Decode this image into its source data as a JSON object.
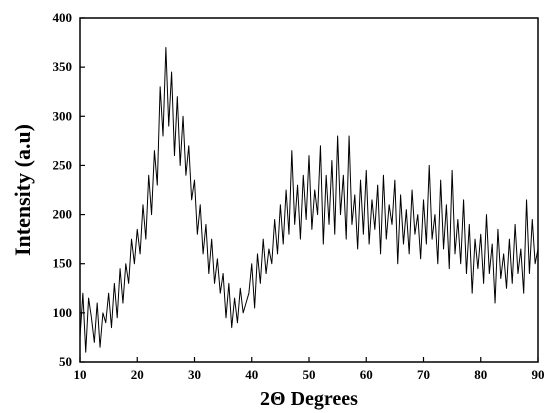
{
  "chart_data": {
    "type": "line",
    "xlabel": "2Θ Degrees",
    "ylabel": "Intensity (a.u)",
    "xlim": [
      10,
      90
    ],
    "ylim": [
      50,
      400
    ],
    "xticks": [
      10,
      20,
      30,
      40,
      50,
      60,
      70,
      80,
      90
    ],
    "yticks": [
      50,
      100,
      150,
      200,
      250,
      300,
      350,
      400
    ],
    "color": "#000000",
    "x": [
      10,
      10.5,
      11,
      11.5,
      12,
      12.5,
      13,
      13.5,
      14,
      14.5,
      15,
      15.5,
      16,
      16.5,
      17,
      17.5,
      18,
      18.5,
      19,
      19.5,
      20,
      20.5,
      21,
      21.5,
      22,
      22.5,
      23,
      23.5,
      24,
      24.5,
      25,
      25.5,
      26,
      26.5,
      27,
      27.5,
      28,
      28.5,
      29,
      29.5,
      30,
      30.5,
      31,
      31.5,
      32,
      32.5,
      33,
      33.5,
      34,
      34.5,
      35,
      35.5,
      36,
      36.5,
      37,
      37.5,
      38,
      38.5,
      39,
      39.5,
      40,
      40.5,
      41,
      41.5,
      42,
      42.5,
      43,
      43.5,
      44,
      44.5,
      45,
      45.5,
      46,
      46.5,
      47,
      47.5,
      48,
      48.5,
      49,
      49.5,
      50,
      50.5,
      51,
      51.5,
      52,
      52.5,
      53,
      53.5,
      54,
      54.5,
      55,
      55.5,
      56,
      56.5,
      57,
      57.5,
      58,
      58.5,
      59,
      59.5,
      60,
      60.5,
      61,
      61.5,
      62,
      62.5,
      63,
      63.5,
      64,
      64.5,
      65,
      65.5,
      66,
      66.5,
      67,
      67.5,
      68,
      68.5,
      69,
      69.5,
      70,
      70.5,
      71,
      71.5,
      72,
      72.5,
      73,
      73.5,
      74,
      74.5,
      75,
      75.5,
      76,
      76.5,
      77,
      77.5,
      78,
      78.5,
      79,
      79.5,
      80,
      80.5,
      81,
      81.5,
      82,
      82.5,
      83,
      83.5,
      84,
      84.5,
      85,
      85.5,
      86,
      86.5,
      87,
      87.5,
      88,
      88.5,
      89,
      89.5,
      90
    ],
    "values": [
      75,
      120,
      60,
      115,
      95,
      70,
      110,
      65,
      100,
      90,
      120,
      85,
      130,
      95,
      145,
      110,
      150,
      130,
      175,
      150,
      185,
      160,
      210,
      175,
      240,
      200,
      265,
      230,
      330,
      280,
      370,
      290,
      345,
      260,
      320,
      250,
      300,
      240,
      270,
      215,
      235,
      180,
      210,
      160,
      190,
      140,
      175,
      130,
      155,
      120,
      140,
      95,
      130,
      85,
      115,
      90,
      125,
      100,
      110,
      120,
      150,
      105,
      160,
      130,
      175,
      140,
      165,
      150,
      195,
      160,
      210,
      170,
      225,
      180,
      265,
      190,
      230,
      175,
      240,
      195,
      260,
      185,
      225,
      200,
      270,
      170,
      240,
      190,
      255,
      180,
      280,
      200,
      240,
      175,
      280,
      190,
      220,
      165,
      235,
      180,
      245,
      170,
      215,
      185,
      230,
      160,
      240,
      175,
      210,
      190,
      235,
      150,
      220,
      170,
      205,
      160,
      225,
      180,
      200,
      155,
      215,
      170,
      250,
      175,
      200,
      150,
      235,
      165,
      210,
      145,
      245,
      160,
      195,
      150,
      215,
      140,
      190,
      120,
      175,
      145,
      180,
      130,
      200,
      140,
      170,
      110,
      185,
      135,
      160,
      125,
      175,
      130,
      190,
      140,
      165,
      120,
      215,
      140,
      195,
      150,
      165
    ]
  }
}
